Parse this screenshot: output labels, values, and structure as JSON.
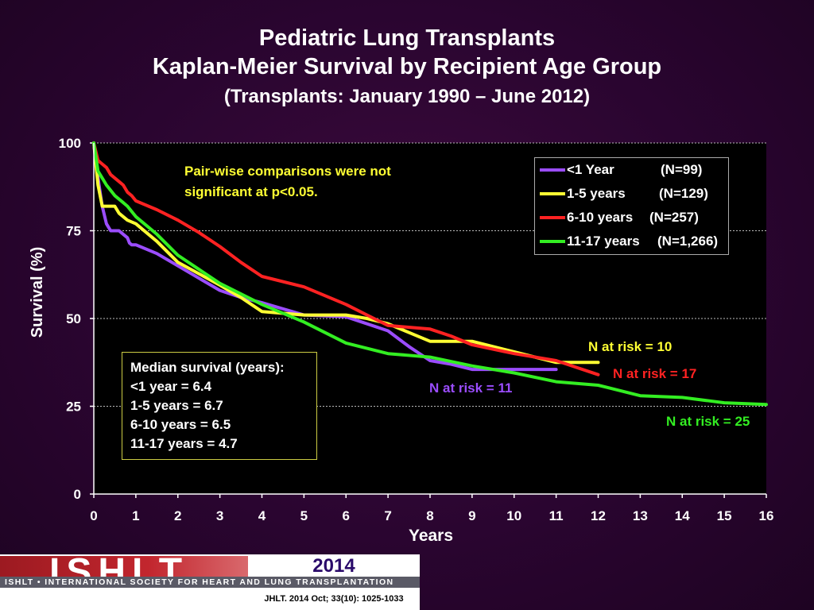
{
  "header": {
    "title": "Pediatric Lung Transplants",
    "subtitle": "Kaplan-Meier Survival by Recipient Age Group",
    "range": "(Transplants: January 1990 – June 2012)"
  },
  "note": {
    "line1": "Pair-wise comparisons were not",
    "line2": "significant at p<0.05."
  },
  "median_box": {
    "heading": "Median survival (years):",
    "lines": [
      "<1 year = 6.4",
      "1-5 years = 6.7",
      "6-10 years = 6.5",
      "11-17 years = 4.7"
    ]
  },
  "risk_labels": [
    {
      "text": "N at risk = 11",
      "color": "#9b4dff"
    },
    {
      "text": "N at risk =  10",
      "color": "#ffff33"
    },
    {
      "text": "N at risk = 17",
      "color": "#ff2222"
    },
    {
      "text": "N at risk = 25",
      "color": "#33ee22"
    }
  ],
  "footer": {
    "logo_text": "ISHLT",
    "tagline": "ISHLT • INTERNATIONAL SOCIETY FOR HEART AND LUNG TRANSPLANTATION",
    "year": "2014",
    "citation": "JHLT. 2014 Oct; 33(10): 1025-1033"
  },
  "chart_data": {
    "type": "line",
    "xlabel": "Years",
    "ylabel": "Survival (%)",
    "xlim": [
      0,
      16
    ],
    "ylim": [
      0,
      100
    ],
    "xticks": [
      0,
      1,
      2,
      3,
      4,
      5,
      6,
      7,
      8,
      9,
      10,
      11,
      12,
      13,
      14,
      15,
      16
    ],
    "yticks": [
      0,
      25,
      50,
      75,
      100
    ],
    "grid": "horizontal dashed",
    "legend": "top-right",
    "series": [
      {
        "name": "<1 Year",
        "n_label": "(N=99)",
        "color": "#9b4dff",
        "x": [
          0,
          0.1,
          0.2,
          0.3,
          0.4,
          0.6,
          0.7,
          0.8,
          0.85,
          0.9,
          1.0,
          1.5,
          2.0,
          2.5,
          3.0,
          3.5,
          4.0,
          5.0,
          6.0,
          7.0,
          7.5,
          8.0,
          8.5,
          9.0,
          10.0,
          11.0
        ],
        "y": [
          100,
          90,
          82,
          77,
          75,
          75,
          74,
          73,
          71.5,
          71,
          71,
          68.5,
          65,
          61.5,
          58,
          56,
          54.5,
          51,
          50.5,
          46.5,
          42,
          38,
          37,
          35.5,
          35.5,
          35.5
        ]
      },
      {
        "name": "1-5 years",
        "n_label": "(N=129)",
        "color": "#ffff33",
        "x": [
          0,
          0.1,
          0.2,
          0.5,
          0.6,
          0.8,
          1.0,
          1.5,
          2.0,
          3.0,
          3.5,
          4.0,
          5.0,
          6.0,
          6.5,
          7.0,
          7.5,
          8.0,
          9.0,
          10.0,
          11.0,
          11.5,
          12.0
        ],
        "y": [
          100,
          88,
          82,
          82,
          80,
          78,
          77,
          72,
          66,
          59.5,
          56,
          52,
          51,
          51,
          50,
          48.5,
          46,
          43.5,
          43.5,
          40.5,
          37.5,
          37.5,
          37.5
        ]
      },
      {
        "name": "6-10 years",
        "n_label": "(N=257)",
        "color": "#ff2222",
        "x": [
          0,
          0.1,
          0.2,
          0.3,
          0.4,
          0.5,
          0.6,
          0.7,
          0.8,
          0.9,
          1.0,
          1.5,
          2.0,
          2.5,
          3.0,
          3.5,
          4.0,
          5.0,
          6.0,
          6.5,
          7.0,
          8.0,
          8.5,
          9.0,
          10.0,
          11.0,
          11.5,
          12.0
        ],
        "y": [
          100,
          95,
          94,
          93,
          91,
          90,
          89,
          88,
          86,
          85,
          83.5,
          81,
          78,
          74.5,
          70.5,
          66,
          62,
          59,
          54,
          51,
          48,
          47,
          45,
          42.5,
          40,
          38,
          36,
          34
        ]
      },
      {
        "name": "11-17 years",
        "n_label": "(N=1,266)",
        "color": "#33ee22",
        "x": [
          0,
          0.1,
          0.2,
          0.3,
          0.5,
          0.7,
          0.8,
          1.0,
          1.5,
          2.0,
          3.0,
          4.0,
          5.0,
          6.0,
          7.0,
          8.0,
          9.0,
          10.0,
          11.0,
          12.0,
          13.0,
          14.0,
          15.0,
          16.0
        ],
        "y": [
          100,
          92,
          90,
          88,
          85,
          83,
          82,
          79,
          74,
          68,
          60,
          54,
          49,
          43,
          40,
          39,
          36.5,
          34.5,
          32,
          31,
          28,
          27.5,
          26,
          25.5
        ]
      }
    ]
  }
}
